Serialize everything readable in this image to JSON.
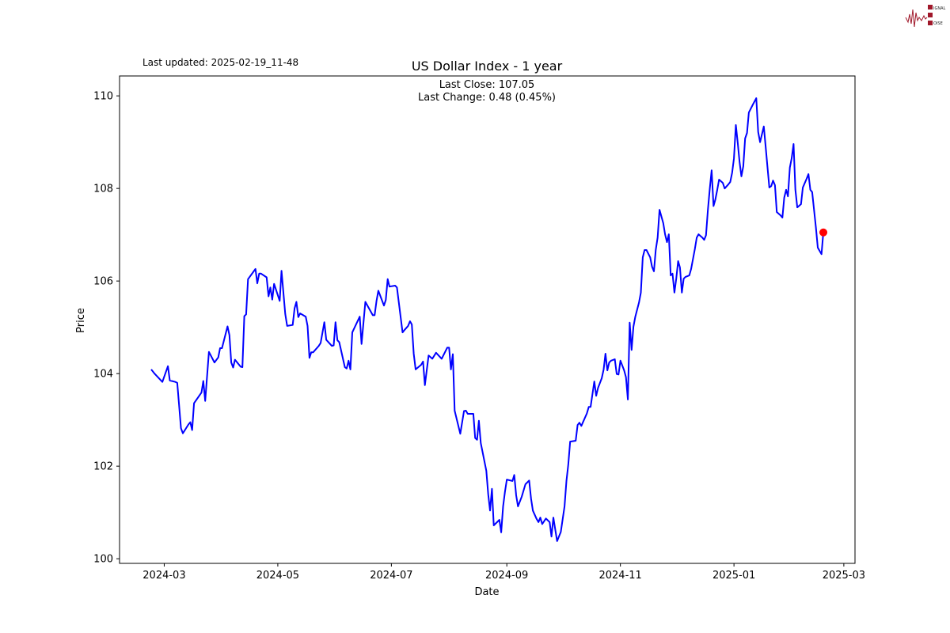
{
  "logo": {
    "text": "SIGNAL 2 NOISE",
    "color": "#a0182a"
  },
  "chart_data": {
    "type": "line",
    "title": "US Dollar Index - 1 year",
    "subtitle": "Last updated: 2025-02-19_11-48",
    "annotation": [
      "Last Close: 107.05",
      "Last Change: 0.48 (0.45%)"
    ],
    "xlabel": "Date",
    "ylabel": "Price",
    "xlim": [
      "2024-02-06",
      "2025-03-07"
    ],
    "ylim": [
      99.9,
      110.43
    ],
    "xticks": [
      "2024-03",
      "2024-05",
      "2024-07",
      "2024-09",
      "2024-11",
      "2025-01",
      "2025-03"
    ],
    "yticks": [
      100,
      102,
      104,
      106,
      108,
      110
    ],
    "grid": false,
    "line_color": "#0000ff",
    "marker_color": "#ff0000",
    "last_point": {
      "date": "2025-02-18",
      "value": 107.05
    },
    "series": [
      {
        "x": [
          "2024-02-23",
          "2024-02-25",
          "2024-02-29",
          "2024-03-03",
          "2024-03-04",
          "2024-03-07",
          "2024-03-08",
          "2024-03-10",
          "2024-03-11",
          "2024-03-14",
          "2024-03-15",
          "2024-03-16",
          "2024-03-17",
          "2024-03-21",
          "2024-03-22",
          "2024-03-23",
          "2024-03-25",
          "2024-03-28",
          "2024-03-30",
          "2024-03-31",
          "2024-04-01",
          "2024-04-04",
          "2024-04-05",
          "2024-04-06",
          "2024-04-07",
          "2024-04-08",
          "2024-04-11",
          "2024-04-12",
          "2024-04-13",
          "2024-04-14",
          "2024-04-15",
          "2024-04-19",
          "2024-04-20",
          "2024-04-21",
          "2024-04-22",
          "2024-04-25",
          "2024-04-26",
          "2024-04-27",
          "2024-04-28",
          "2024-04-29",
          "2024-05-02",
          "2024-05-03",
          "2024-05-05",
          "2024-05-06",
          "2024-05-09",
          "2024-05-10",
          "2024-05-11",
          "2024-05-12",
          "2024-05-13",
          "2024-05-16",
          "2024-05-17",
          "2024-05-18",
          "2024-05-19",
          "2024-05-20",
          "2024-05-23",
          "2024-05-24",
          "2024-05-25",
          "2024-05-26",
          "2024-05-27",
          "2024-05-30",
          "2024-05-31",
          "2024-06-01",
          "2024-06-02",
          "2024-06-03",
          "2024-06-06",
          "2024-06-07",
          "2024-06-08",
          "2024-06-09",
          "2024-06-10",
          "2024-06-14",
          "2024-06-15",
          "2024-06-17",
          "2024-06-21",
          "2024-06-22",
          "2024-06-23",
          "2024-06-24",
          "2024-06-27",
          "2024-06-28",
          "2024-06-29",
          "2024-06-30",
          "2024-07-03",
          "2024-07-04",
          "2024-07-07",
          "2024-07-08",
          "2024-07-10",
          "2024-07-11",
          "2024-07-12",
          "2024-07-13",
          "2024-07-14",
          "2024-07-17",
          "2024-07-18",
          "2024-07-19",
          "2024-07-21",
          "2024-07-23",
          "2024-07-25",
          "2024-07-28",
          "2024-07-31",
          "2024-08-01",
          "2024-08-02",
          "2024-08-03",
          "2024-08-04",
          "2024-08-07",
          "2024-08-09",
          "2024-08-10",
          "2024-08-11",
          "2024-08-14",
          "2024-08-15",
          "2024-08-16",
          "2024-08-17",
          "2024-08-18",
          "2024-08-21",
          "2024-08-22",
          "2024-08-23",
          "2024-08-24",
          "2024-08-25",
          "2024-08-28",
          "2024-08-29",
          "2024-08-30",
          "2024-08-31",
          "2024-09-01",
          "2024-09-04",
          "2024-09-05",
          "2024-09-06",
          "2024-09-07",
          "2024-09-09",
          "2024-09-11",
          "2024-09-13",
          "2024-09-14",
          "2024-09-15",
          "2024-09-17",
          "2024-09-18",
          "2024-09-19",
          "2024-09-20",
          "2024-09-22",
          "2024-09-24",
          "2024-09-25",
          "2024-09-26",
          "2024-09-28",
          "2024-09-30",
          "2024-10-02",
          "2024-10-03",
          "2024-10-04",
          "2024-10-05",
          "2024-10-08",
          "2024-10-09",
          "2024-10-10",
          "2024-10-11",
          "2024-10-14",
          "2024-10-15",
          "2024-10-16",
          "2024-10-17",
          "2024-10-18",
          "2024-10-19",
          "2024-10-20",
          "2024-10-22",
          "2024-10-23",
          "2024-10-24",
          "2024-10-25",
          "2024-10-26",
          "2024-10-27",
          "2024-10-29",
          "2024-10-30",
          "2024-10-31",
          "2024-11-01",
          "2024-11-03",
          "2024-11-04",
          "2024-11-05",
          "2024-11-06",
          "2024-11-07",
          "2024-11-08",
          "2024-11-09",
          "2024-11-11",
          "2024-11-12",
          "2024-11-13",
          "2024-11-14",
          "2024-11-15",
          "2024-11-17",
          "2024-11-18",
          "2024-11-19",
          "2024-11-20",
          "2024-11-21",
          "2024-11-22",
          "2024-11-24",
          "2024-11-25",
          "2024-11-26",
          "2024-11-27",
          "2024-11-28",
          "2024-11-29",
          "2024-11-30",
          "2024-12-01",
          "2024-12-02",
          "2024-12-03",
          "2024-12-04",
          "2024-12-05",
          "2024-12-06",
          "2024-12-08",
          "2024-12-09",
          "2024-12-11",
          "2024-12-12",
          "2024-12-13",
          "2024-12-15",
          "2024-12-16",
          "2024-12-17",
          "2024-12-18",
          "2024-12-19",
          "2024-12-20",
          "2024-12-21",
          "2024-12-22",
          "2024-12-23",
          "2024-12-24",
          "2024-12-26",
          "2024-12-27",
          "2024-12-29",
          "2024-12-30",
          "2024-12-31",
          "2025-01-01",
          "2025-01-02",
          "2025-01-03",
          "2025-01-04",
          "2025-01-05",
          "2025-01-06",
          "2025-01-07",
          "2025-01-08",
          "2025-01-09",
          "2025-01-11",
          "2025-01-13",
          "2025-01-14",
          "2025-01-15",
          "2025-01-17",
          "2025-01-18",
          "2025-01-19",
          "2025-01-20",
          "2025-01-21",
          "2025-01-22",
          "2025-01-23",
          "2025-01-24",
          "2025-01-26",
          "2025-01-27",
          "2025-01-28",
          "2025-01-29",
          "2025-01-30",
          "2025-01-31",
          "2025-02-01",
          "2025-02-02",
          "2025-02-03",
          "2025-02-04",
          "2025-02-06",
          "2025-02-07",
          "2025-02-09",
          "2025-02-10",
          "2025-02-11",
          "2025-02-12",
          "2025-02-14",
          "2025-02-15",
          "2025-02-17",
          "2025-02-18"
        ],
        "values": [
          104.09,
          103.99,
          103.82,
          104.16,
          103.85,
          103.82,
          103.8,
          102.82,
          102.71,
          102.9,
          102.95,
          102.78,
          103.36,
          103.59,
          103.84,
          103.41,
          104.47,
          104.24,
          104.35,
          104.55,
          104.55,
          105.02,
          104.83,
          104.24,
          104.13,
          104.3,
          104.15,
          104.14,
          105.24,
          105.28,
          106.04,
          106.26,
          105.95,
          106.16,
          106.16,
          106.08,
          105.67,
          105.86,
          105.6,
          105.94,
          105.57,
          106.22,
          105.29,
          105.03,
          105.05,
          105.41,
          105.55,
          105.22,
          105.3,
          105.23,
          105.03,
          104.34,
          104.46,
          104.46,
          104.6,
          104.66,
          104.89,
          105.11,
          104.73,
          104.6,
          104.61,
          105.11,
          104.72,
          104.68,
          104.14,
          104.11,
          104.28,
          104.09,
          104.89,
          105.23,
          104.64,
          105.55,
          105.26,
          105.26,
          105.57,
          105.79,
          105.47,
          105.59,
          106.04,
          105.88,
          105.9,
          105.86,
          104.89,
          104.94,
          105.03,
          105.13,
          105.06,
          104.43,
          104.09,
          104.19,
          104.26,
          103.75,
          104.39,
          104.32,
          104.45,
          104.32,
          104.56,
          104.56,
          104.09,
          104.42,
          103.2,
          102.7,
          103.19,
          103.2,
          103.13,
          103.13,
          102.61,
          102.57,
          102.98,
          102.5,
          101.9,
          101.39,
          101.04,
          101.51,
          100.72,
          100.84,
          100.57,
          101.13,
          101.44,
          101.71,
          101.68,
          101.81,
          101.37,
          101.13,
          101.34,
          101.61,
          101.69,
          101.3,
          101.04,
          100.86,
          100.79,
          100.89,
          100.75,
          100.87,
          100.79,
          100.48,
          100.89,
          100.38,
          100.58,
          101.13,
          101.68,
          102.03,
          102.53,
          102.55,
          102.89,
          102.94,
          102.87,
          103.14,
          103.28,
          103.28,
          103.56,
          103.83,
          103.52,
          103.69,
          103.9,
          104.09,
          104.43,
          104.07,
          104.24,
          104.28,
          104.31,
          103.99,
          103.98,
          104.28,
          104.07,
          103.92,
          103.44,
          105.1,
          104.51,
          105.01,
          105.23,
          105.54,
          105.75,
          106.51,
          106.67,
          106.67,
          106.51,
          106.31,
          106.21,
          106.67,
          106.94,
          107.54,
          107.25,
          107.01,
          106.84,
          107.01,
          106.12,
          106.16,
          105.75,
          106.05,
          106.43,
          106.29,
          105.75,
          106.05,
          106.09,
          106.12,
          106.26,
          106.69,
          106.94,
          107.01,
          106.94,
          106.89,
          106.99,
          107.54,
          108.0,
          108.39,
          107.62,
          107.76,
          107.97,
          108.19,
          108.12,
          108.0,
          108.09,
          108.14,
          108.34,
          108.65,
          109.37,
          109.0,
          108.57,
          108.26,
          108.48,
          109.08,
          109.2,
          109.64,
          109.8,
          109.95,
          109.22,
          109.0,
          109.34,
          108.91,
          108.45,
          108.02,
          108.05,
          108.17,
          108.07,
          107.49,
          107.42,
          107.37,
          107.8,
          107.97,
          107.83,
          108.45,
          108.65,
          108.96,
          107.97,
          107.59,
          107.66,
          108.02,
          108.21,
          108.31,
          107.97,
          107.92,
          107.16,
          106.72,
          106.58,
          107.05
        ]
      }
    ]
  }
}
